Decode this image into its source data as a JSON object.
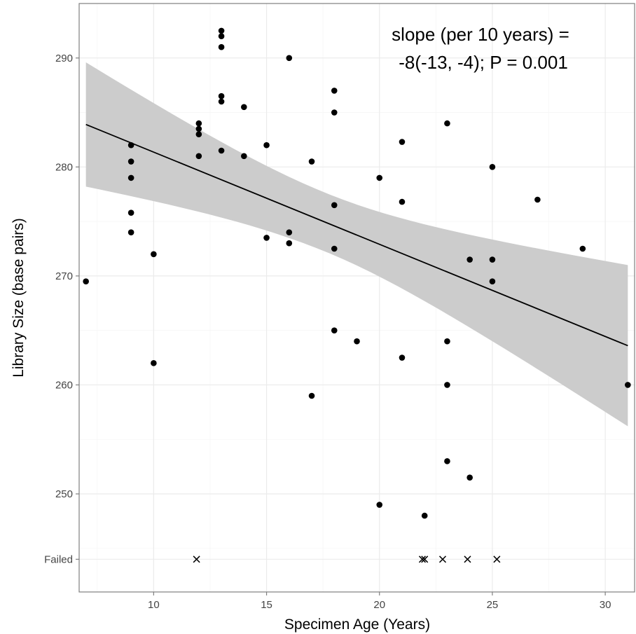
{
  "chart_data": {
    "type": "scatter",
    "xlabel": "Specimen Age (Years)",
    "ylabel": "Library Size (base pairs)",
    "xlim": [
      6.7,
      31.3
    ],
    "ylim": [
      241,
      295
    ],
    "x_ticks": [
      10,
      15,
      20,
      25,
      30
    ],
    "y_ticks": [
      250,
      260,
      270,
      280,
      290
    ],
    "failed_label": "Failed",
    "failed_y": 244,
    "annotation": [
      "slope (per 10 years) =",
      "-8(-13, -4); P = 0.001"
    ],
    "grid": true,
    "legend": "none",
    "points": [
      [
        7,
        269.5
      ],
      [
        9,
        282
      ],
      [
        9,
        280.5
      ],
      [
        9,
        279
      ],
      [
        9,
        275.8
      ],
      [
        9,
        274
      ],
      [
        10,
        272
      ],
      [
        10,
        262
      ],
      [
        12,
        284
      ],
      [
        12,
        283.5
      ],
      [
        12,
        283
      ],
      [
        12,
        281
      ],
      [
        13,
        292.5
      ],
      [
        13,
        292
      ],
      [
        13,
        291
      ],
      [
        13,
        286.5
      ],
      [
        13,
        286
      ],
      [
        13,
        281.5
      ],
      [
        14,
        285.5
      ],
      [
        14,
        281
      ],
      [
        15,
        282
      ],
      [
        15,
        273.5
      ],
      [
        16,
        290
      ],
      [
        16,
        274
      ],
      [
        16,
        273
      ],
      [
        17,
        280.5
      ],
      [
        17,
        259
      ],
      [
        18,
        287
      ],
      [
        18,
        285
      ],
      [
        18,
        276.5
      ],
      [
        18,
        272.5
      ],
      [
        18,
        265
      ],
      [
        19,
        264
      ],
      [
        20,
        279
      ],
      [
        20,
        249
      ],
      [
        21,
        282.3
      ],
      [
        21,
        276.8
      ],
      [
        21,
        262.5
      ],
      [
        22,
        248
      ],
      [
        23,
        284
      ],
      [
        23,
        264
      ],
      [
        23,
        260
      ],
      [
        23,
        253
      ],
      [
        24,
        271.5
      ],
      [
        24,
        251.5
      ],
      [
        25,
        280
      ],
      [
        25,
        271.5
      ],
      [
        25,
        269.5
      ],
      [
        27,
        277
      ],
      [
        29,
        272.5
      ],
      [
        31,
        260
      ]
    ],
    "failed_points": [
      11.9,
      21.9,
      22.0,
      22.8,
      23.9,
      25.2
    ],
    "fit_line": {
      "x": [
        7,
        31
      ],
      "y": [
        283.9,
        263.6
      ]
    },
    "confidence_band": {
      "x": [
        7,
        31
      ],
      "upper": [
        289.6,
        271.0
      ],
      "lower": [
        278.2,
        256.2
      ]
    },
    "colors": {
      "point": "#000000",
      "band": "#cccccc",
      "line": "#000000",
      "panel_border": "#7f7f7f"
    }
  }
}
